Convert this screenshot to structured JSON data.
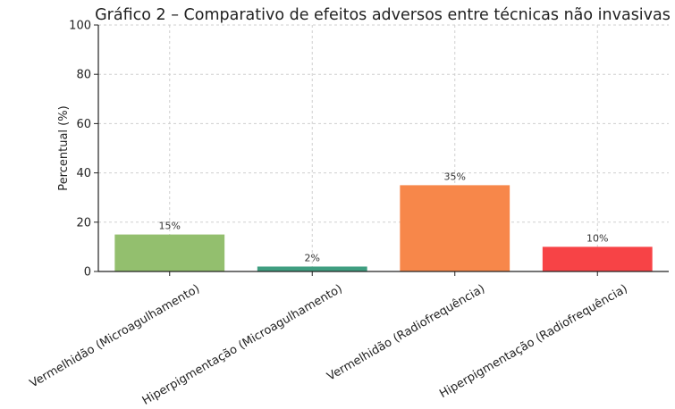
{
  "chart_data": {
    "type": "bar",
    "title": "Gráfico 2 – Comparativo de efeitos adversos entre técnicas não invasivas",
    "xlabel": "",
    "ylabel": "Percentual (%)",
    "ylim": [
      0,
      100
    ],
    "yticks": [
      "0",
      "20",
      "40",
      "60",
      "80",
      "100"
    ],
    "grid": true,
    "categories": [
      "Vermelhidão (Microagulhamento)",
      "Hiperpigmentação (Microagulhamento)",
      "Vermelhidão (Radiofrequência)",
      "Hiperpigmentação (Radiofrequência)"
    ],
    "values": [
      15,
      2,
      35,
      10
    ],
    "value_labels": [
      "15%",
      "2%",
      "35%",
      "10%"
    ],
    "colors": [
      "#93bf6e",
      "#3f9e80",
      "#f7874a",
      "#f74346"
    ]
  }
}
